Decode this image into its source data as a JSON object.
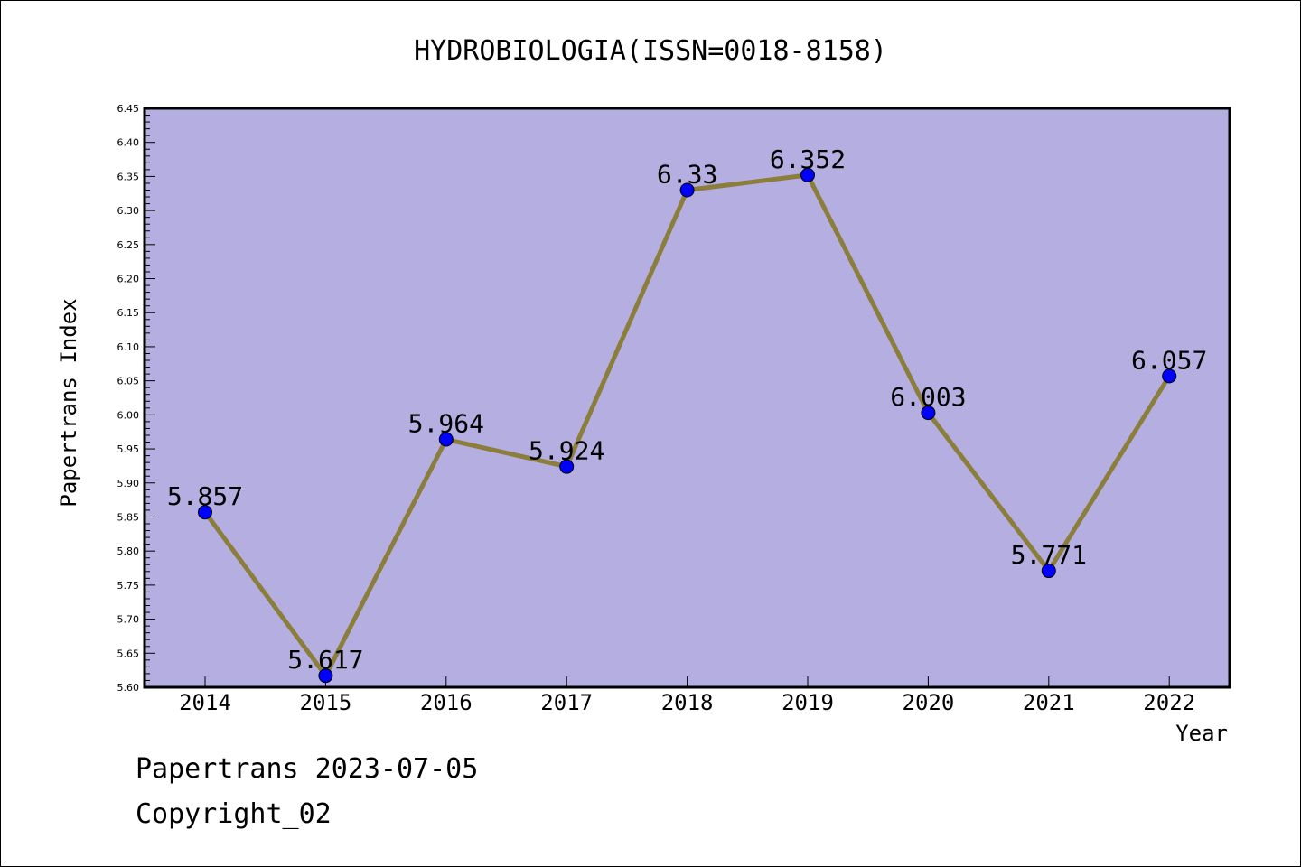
{
  "chart_data": {
    "type": "line",
    "title": "HYDROBIOLOGIA(ISSN=0018-8158)",
    "xlabel": "Year",
    "ylabel": "Papertrans Index",
    "x": [
      "2014",
      "2015",
      "2016",
      "2017",
      "2018",
      "2019",
      "2020",
      "2021",
      "2022"
    ],
    "values": [
      5.857,
      5.617,
      5.964,
      5.924,
      6.33,
      6.352,
      6.003,
      5.771,
      6.057
    ],
    "data_labels": [
      "5.857",
      "5.617",
      "5.964",
      "5.924",
      "6.33",
      "6.352",
      "6.003",
      "5.771",
      "6.057"
    ],
    "ylim": [
      5.6,
      6.45
    ],
    "y_ticks": [
      "5.60",
      "5.65",
      "5.70",
      "5.75",
      "5.80",
      "5.85",
      "5.90",
      "5.95",
      "6.00",
      "6.05",
      "6.10",
      "6.15",
      "6.20",
      "6.25",
      "6.30",
      "6.35",
      "6.40",
      "6.45"
    ],
    "grid": false,
    "colors": {
      "plot_background": "#b4aee1",
      "line": "#8b7d3a",
      "marker": "#0000ff"
    }
  },
  "footer": {
    "line1": "Papertrans 2023-07-05",
    "line2": "Copyright_02"
  }
}
